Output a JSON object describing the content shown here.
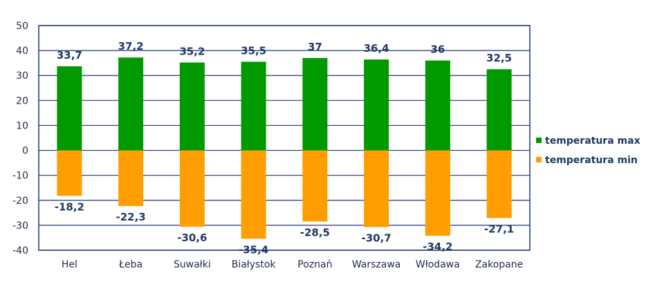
{
  "chart_data": {
    "type": "bar",
    "categories": [
      "Hel",
      "Łeba",
      "Suwałki",
      "Białystok",
      "Poznań",
      "Warszawa",
      "Włodawa",
      "Zakopane"
    ],
    "series": [
      {
        "name": "temperatura max",
        "color": "#009900",
        "values": [
          33.7,
          37.2,
          35.2,
          35.5,
          37,
          36.4,
          36,
          32.5
        ],
        "labels": [
          "33,7",
          "37,2",
          "35,2",
          "35,5",
          "37",
          "36,4",
          "36",
          "32,5"
        ]
      },
      {
        "name": "temperatura min",
        "color": "#ff9e00",
        "values": [
          -18.2,
          -22.3,
          -30.6,
          -35.4,
          -28.5,
          -30.7,
          -34.2,
          -27.1
        ],
        "labels": [
          "-18,2",
          "-22,3",
          "-30,6",
          "-35,4",
          "-28,5",
          "-30,7",
          "-34,2",
          "-27,1"
        ]
      }
    ],
    "ylim": [
      -40,
      50
    ],
    "yticks": [
      50,
      40,
      30,
      20,
      10,
      0,
      -10,
      -20,
      -30,
      -40
    ],
    "grid": true,
    "legend": "right",
    "title": "",
    "xlabel": "",
    "ylabel": ""
  }
}
